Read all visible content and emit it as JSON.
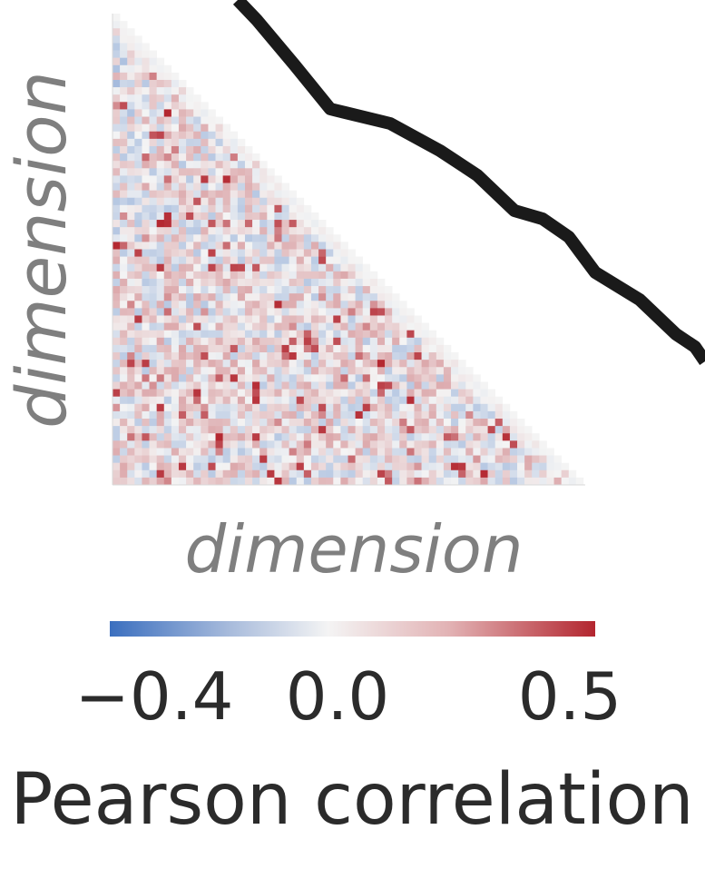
{
  "chart_data": {
    "type": "heatmap",
    "subtype": "lower-triangular correlation matrix",
    "xlabel": "dimension",
    "ylabel": "dimension",
    "matrix_size": 64,
    "colormap": "coolwarm (blue-white-red)",
    "colorbar": {
      "label": "Pearson correlation",
      "range": [
        -0.45,
        0.55
      ],
      "ticks": [
        -0.4,
        0.0,
        0.5
      ],
      "tick_labels": [
        "−0.4",
        "0.0",
        "0.5"
      ],
      "orientation": "horizontal"
    },
    "colors": {
      "negative": "#3b6fbf",
      "zero": "#f4f4f4",
      "positive": "#b3262f"
    },
    "overlay_line": {
      "color": "#1a1a1a",
      "note": "thick black curve partially visible in the upper right"
    }
  }
}
